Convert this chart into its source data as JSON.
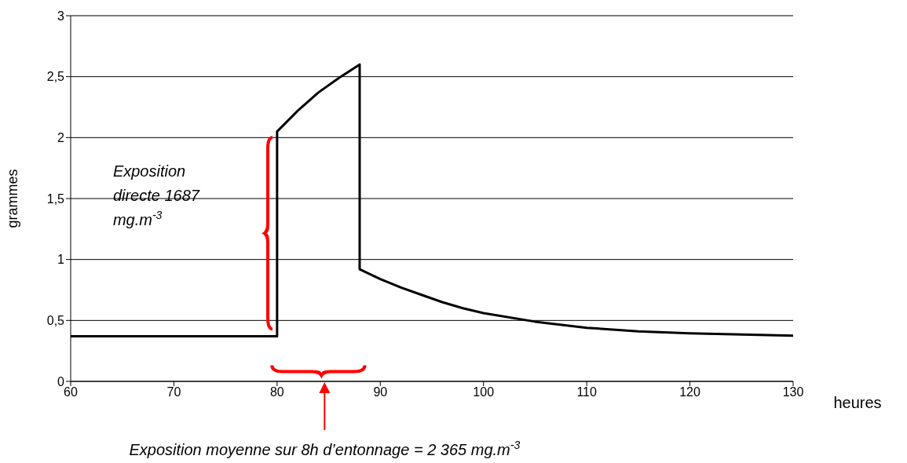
{
  "chart_data": {
    "type": "line",
    "xlabel": "heures",
    "ylabel": "grammes",
    "x": [
      60,
      80,
      80,
      82,
      84,
      86,
      88,
      88,
      90,
      92,
      94,
      96,
      98,
      100,
      105,
      110,
      115,
      120,
      125,
      130
    ],
    "series": [
      {
        "color": "#000000",
        "values": [
          0.37,
          0.37,
          2.05,
          2.22,
          2.37,
          2.49,
          2.6,
          0.92,
          0.84,
          0.77,
          0.71,
          0.65,
          0.6,
          0.56,
          0.49,
          0.44,
          0.41,
          0.395,
          0.385,
          0.375
        ]
      }
    ],
    "xlim": [
      60,
      130
    ],
    "xticks": [
      60,
      70,
      80,
      90,
      100,
      110,
      120,
      130
    ],
    "ylim": [
      0,
      3
    ],
    "yticks": [
      0,
      {
        "value": 0.5,
        "label": "0,5"
      },
      1,
      {
        "value": 1.5,
        "label": "1,5"
      },
      2,
      {
        "value": 2.5,
        "label": "2,5"
      },
      3
    ],
    "grid": "y",
    "marker": "none",
    "line_style": "solid",
    "annotations": [
      "Exposition directe 1687 mg.m$^{-3}$",
      "Exposition moyenne sur 8h d’entonnage = 2 365 mg.m$^{-3}$"
    ]
  }
}
